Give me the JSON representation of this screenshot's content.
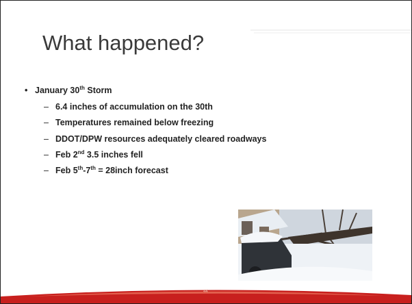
{
  "title": "What happened?",
  "bullet": {
    "segments": [
      "January 30",
      "th",
      " Storm"
    ],
    "items": [
      {
        "segments": [
          "6.4 inches of accumulation on the 30th"
        ]
      },
      {
        "segments": [
          "Temperatures remained below freezing"
        ]
      },
      {
        "segments": [
          "DDOT/DPW resources adequately cleared roadways"
        ]
      },
      {
        "segments": [
          "Feb 2",
          "nd",
          " 3.5 inches fell"
        ]
      },
      {
        "segments": [
          "Feb 5",
          "th",
          "-7",
          "th",
          " = 28inch forecast"
        ]
      }
    ]
  },
  "page_number": "44"
}
